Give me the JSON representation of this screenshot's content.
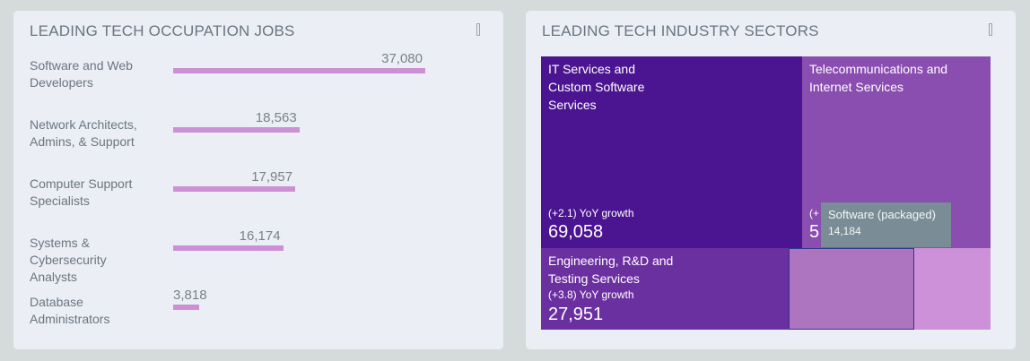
{
  "left": {
    "title": "LEADING TECH OCCUPATION JOBS"
  },
  "right": {
    "title": "LEADING TECH INDUSTRY SECTORS"
  },
  "tooltip": {
    "name": "Software (packaged)",
    "value": "14,184"
  },
  "chart_data": [
    {
      "type": "bar",
      "orientation": "horizontal",
      "title": "LEADING TECH OCCUPATION JOBS",
      "categories": [
        "Software and Web Developers",
        "Network Architects, Admins, & Support",
        "Computer Support Specialists",
        "Systems & Cybersecurity Analysts",
        "Database Administrators"
      ],
      "values": [
        37080,
        18563,
        17957,
        16174,
        3818
      ],
      "labels": [
        "37,080",
        "18,563",
        "17,957",
        "16,174",
        "3,818"
      ],
      "color": "#cc91d4"
    },
    {
      "type": "treemap",
      "title": "LEADING TECH INDUSTRY SECTORS",
      "tiles": [
        {
          "name": "IT Services and Custom Software Services",
          "growth": "(+2.1) YoY growth",
          "value": "69,058",
          "color": "#4b1490"
        },
        {
          "name": "Telecommunications and Internet Services",
          "growth": "(+",
          "value": "5",
          "color": "#8a4db0"
        },
        {
          "name": "Engineering, R&D and Testing Services",
          "growth": "(+3.8) YoY growth",
          "value": "27,951",
          "color": "#6b30a0"
        },
        {
          "name": "Software (packaged)",
          "value": "14,184",
          "color": "#ad74c0"
        },
        {
          "name": "",
          "color": "#cc91d8"
        }
      ]
    }
  ]
}
